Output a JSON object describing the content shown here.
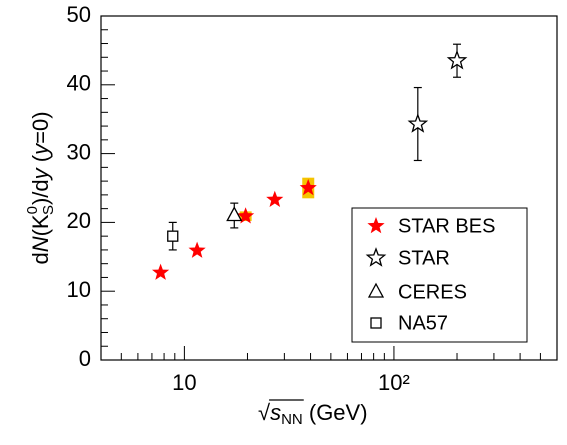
{
  "chart_data": {
    "type": "scatter",
    "xlabel": [
      "√",
      "s",
      "NN",
      " (GeV)"
    ],
    "ylabel": [
      "d",
      "N",
      "(K",
      "0",
      "S",
      ")/d",
      "y",
      " (",
      "y",
      "=0)"
    ],
    "xscale": "log",
    "xlim": [
      4,
      600
    ],
    "xticks": [
      10,
      {
        "value": 100,
        "label": "10²"
      }
    ],
    "xminorticks": [
      4,
      5,
      6,
      7,
      8,
      9,
      20,
      30,
      40,
      50,
      60,
      70,
      80,
      90,
      200,
      300,
      400,
      500,
      600
    ],
    "ylim": [
      0,
      50
    ],
    "yticks": [
      0,
      10,
      20,
      30,
      40,
      50
    ],
    "yminorticks": [
      2,
      4,
      6,
      8,
      12,
      14,
      16,
      18,
      22,
      24,
      26,
      28,
      32,
      34,
      36,
      38,
      42,
      44,
      46,
      48
    ],
    "legend": "bottom-right",
    "series": [
      {
        "name": "STAR BES",
        "marker": "star-filled",
        "color": "#ff0000",
        "sys_color": "#f5c400",
        "x": [
          7.7,
          11.5,
          19.6,
          27,
          39
        ],
        "values": [
          12.7,
          15.9,
          20.9,
          23.3,
          25.0
        ],
        "errors": [
          null,
          null,
          null,
          null,
          null
        ],
        "sys_errors": [
          null,
          null,
          0.7,
          null,
          1.5
        ]
      },
      {
        "name": "STAR",
        "marker": "star-open",
        "color": "#000000",
        "x": [
          130,
          200
        ],
        "values": [
          34.3,
          43.5
        ],
        "errors": [
          5.3,
          2.4
        ]
      },
      {
        "name": "CERES",
        "marker": "triangle-open",
        "color": "#000000",
        "x": [
          17.3
        ],
        "values": [
          21.0
        ],
        "errors": [
          1.8
        ]
      },
      {
        "name": "NA57",
        "marker": "square-open",
        "color": "#000000",
        "x": [
          8.8
        ],
        "values": [
          18.0
        ],
        "errors": [
          2.0
        ]
      }
    ]
  }
}
